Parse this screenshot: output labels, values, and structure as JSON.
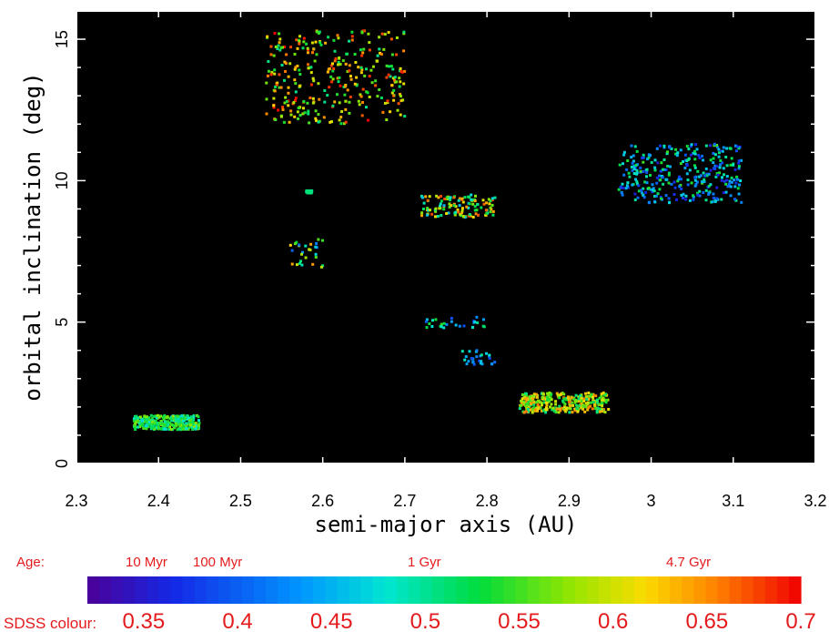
{
  "chart_data": {
    "type": "scatter",
    "xlabel": "semi-major axis (AU)",
    "ylabel": "orbital inclination (deg)",
    "xlim": [
      2.3,
      3.2
    ],
    "ylim": [
      0,
      16
    ],
    "x_ticks": [
      "2.3",
      "2.4",
      "2.5",
      "2.6",
      "2.7",
      "2.8",
      "2.9",
      "3",
      "3.1",
      "3.2"
    ],
    "y_ticks": [
      "0",
      "5",
      "10",
      "15"
    ],
    "plot_background": "#000000",
    "grid": false,
    "color_variable": "SDSS colour",
    "clusters": [
      {
        "x_range": [
          2.37,
          2.45
        ],
        "y_range": [
          1.2,
          1.7
        ],
        "color_range": [
          0.47,
          0.58
        ],
        "density": "high"
      },
      {
        "x_range": [
          2.53,
          2.7
        ],
        "y_range": [
          12.0,
          15.3
        ],
        "color_range": [
          0.5,
          0.7
        ],
        "density": "high"
      },
      {
        "x_range": [
          2.58,
          2.587
        ],
        "y_range": [
          9.55,
          9.65
        ],
        "color_range": [
          0.5,
          0.52
        ],
        "density": "low"
      },
      {
        "x_range": [
          2.56,
          2.6
        ],
        "y_range": [
          6.9,
          8.0
        ],
        "color_range": [
          0.4,
          0.65
        ],
        "density": "low"
      },
      {
        "x_range": [
          2.72,
          2.81
        ],
        "y_range": [
          8.7,
          9.5
        ],
        "color_range": [
          0.45,
          0.68
        ],
        "density": "medium"
      },
      {
        "x_range": [
          2.72,
          2.8
        ],
        "y_range": [
          4.8,
          5.2
        ],
        "color_range": [
          0.38,
          0.55
        ],
        "density": "low"
      },
      {
        "x_range": [
          2.77,
          2.81
        ],
        "y_range": [
          3.5,
          4.0
        ],
        "color_range": [
          0.38,
          0.5
        ],
        "density": "low"
      },
      {
        "x_range": [
          2.84,
          2.95
        ],
        "y_range": [
          1.8,
          2.5
        ],
        "color_range": [
          0.5,
          0.66
        ],
        "density": "high"
      },
      {
        "x_range": [
          2.96,
          3.11
        ],
        "y_range": [
          9.2,
          11.3
        ],
        "color_range": [
          0.35,
          0.55
        ],
        "density": "high"
      }
    ],
    "colorbar": {
      "age_label": "Age:",
      "age_ticks": [
        "10 Myr",
        "100 Myr",
        "1 Gyr",
        "4.7 Gyr"
      ],
      "scale_label": "SDSS colour:",
      "scale_ticks": [
        "0.35",
        "0.4",
        "0.45",
        "0.5",
        "0.55",
        "0.6",
        "0.65",
        "0.7"
      ],
      "range": [
        0.32,
        0.7
      ]
    }
  }
}
